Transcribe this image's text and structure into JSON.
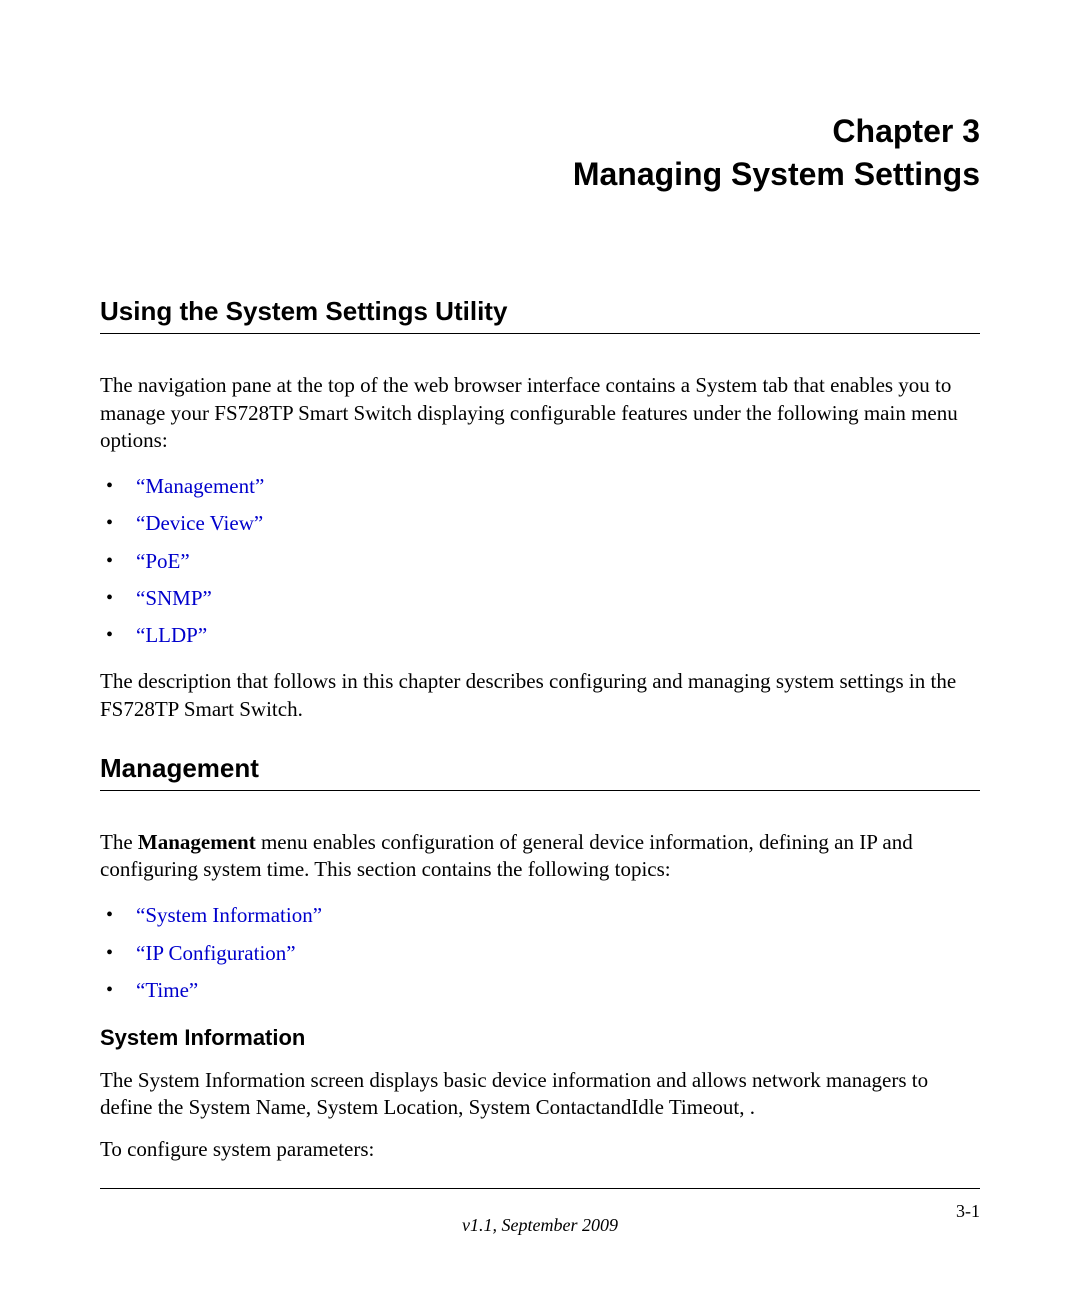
{
  "chapter": {
    "line1": "Chapter 3",
    "line2": "Managing System Settings"
  },
  "section1": {
    "heading": "Using the System Settings Utility",
    "para1": "The navigation pane at the top of the web browser interface contains a System tab that enables you to manage your FS728TP Smart Switch displaying configurable features under the following main menu options:",
    "items": [
      "“Management”",
      "“Device View”",
      "“PoE”",
      "“SNMP”",
      "“LLDP”"
    ],
    "para2": "The description that follows in this chapter describes configuring and managing system settings in the FS728TP Smart Switch."
  },
  "section2": {
    "heading": "Management",
    "para1_prefix": "The ",
    "para1_bold": "Management",
    "para1_suffix": " menu enables configuration of general device information, defining an IP and configuring system time. This section contains the following topics:",
    "items": [
      "“System Information”",
      "“IP Configuration”",
      "“Time”"
    ]
  },
  "section3": {
    "heading": "System Information",
    "para1": "The System Information screen displays basic device information and allows network managers to define the System Name, System Location, System ContactandIdle Timeout, .",
    "para2": "To configure system parameters:"
  },
  "footer": {
    "page_number": "3-1",
    "version": "v1.1, September 2009"
  },
  "styles": {
    "link_color": "#0000cc",
    "text_color": "#000000",
    "background_color": "#ffffff",
    "body_font": "Times New Roman",
    "heading_font": "Arial",
    "chapter_fontsize": 32,
    "h1_fontsize": 26,
    "h2_fontsize": 26,
    "h3_fontsize": 22,
    "body_fontsize": 21,
    "footer_fontsize": 18
  }
}
